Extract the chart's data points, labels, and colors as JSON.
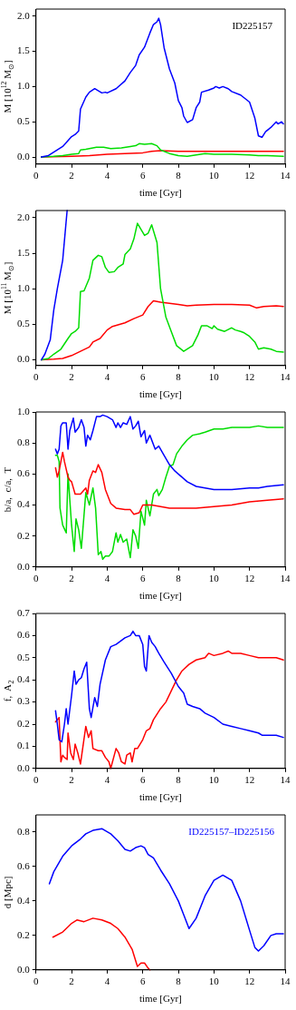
{
  "chart_data": [
    {
      "type": "line",
      "xlabel": "time [Gyr]",
      "ylabel": "M [10$^{12}$ M$_{⊙}$]",
      "xlim": [
        0,
        14
      ],
      "xticks": [
        0,
        2,
        4,
        6,
        8,
        10,
        12,
        14
      ],
      "ylim": [
        -0.1,
        2.1
      ],
      "yticks": [
        {
          "value": 0,
          "label": "0.0"
        },
        0.5,
        {
          "value": 1,
          "label": "1.0"
        },
        1.5,
        {
          "value": 2,
          "label": "2.0"
        }
      ],
      "grid": false,
      "marker": "none",
      "line_style": "solid",
      "annotations": [
        "ID225157"
      ],
      "series": [
        {
          "color": "#0000ff",
          "x": [
            0.3,
            0.7,
            1,
            1.5,
            2,
            2.2,
            2.4,
            2.5,
            2.8,
            3,
            3.3,
            3.7,
            3.9,
            4,
            4.5,
            5,
            5.3,
            5.6,
            5.8,
            6.1,
            6.4,
            6.6,
            6.8,
            6.9,
            7,
            7.2,
            7.5,
            7.8,
            8,
            8.2,
            8.3,
            8.5,
            8.8,
            9,
            9.2,
            9.3,
            9.7,
            10,
            10.1,
            10.3,
            10.5,
            10.8,
            11,
            11.5,
            12,
            12.3,
            12.5,
            12.7,
            12.9,
            13.2,
            13.5,
            13.6,
            13.8,
            13.9
          ],
          "values": [
            0,
            0.02,
            0.07,
            0.15,
            0.29,
            0.32,
            0.37,
            0.68,
            0.85,
            0.92,
            0.97,
            0.91,
            0.92,
            0.91,
            0.97,
            1.08,
            1.2,
            1.3,
            1.45,
            1.56,
            1.76,
            1.88,
            1.92,
            1.97,
            1.88,
            1.55,
            1.25,
            1.05,
            0.8,
            0.7,
            0.58,
            0.49,
            0.53,
            0.7,
            0.78,
            0.92,
            0.95,
            0.98,
            1,
            0.98,
            1,
            0.97,
            0.93,
            0.88,
            0.78,
            0.55,
            0.3,
            0.28,
            0.36,
            0.42,
            0.5,
            0.47,
            0.5,
            0.47
          ]
        },
        {
          "color": "#00dd00",
          "x": [
            0.3,
            1,
            1.5,
            2,
            2.4,
            2.5,
            2.8,
            3,
            3.4,
            3.8,
            4.2,
            4.8,
            5.3,
            5.6,
            5.8,
            6.1,
            6.5,
            6.8,
            7,
            7.5,
            8,
            8.5,
            9,
            9.5,
            10,
            11,
            12,
            12.5,
            13,
            13.9
          ],
          "values": [
            0,
            0.01,
            0.02,
            0.04,
            0.05,
            0.1,
            0.11,
            0.12,
            0.14,
            0.14,
            0.12,
            0.13,
            0.15,
            0.16,
            0.19,
            0.18,
            0.19,
            0.16,
            0.1,
            0.05,
            0.02,
            0.01,
            0.03,
            0.05,
            0.04,
            0.04,
            0.03,
            0.02,
            0.02,
            0.01
          ]
        },
        {
          "color": "#ff0000",
          "x": [
            0.3,
            2,
            3,
            4,
            5,
            6,
            6.5,
            7,
            8,
            10,
            12,
            13.9
          ],
          "values": [
            0,
            0.01,
            0.02,
            0.04,
            0.05,
            0.06,
            0.08,
            0.09,
            0.08,
            0.08,
            0.08,
            0.08
          ]
        }
      ]
    },
    {
      "type": "line",
      "xlabel": "time [Gyr]",
      "ylabel": "M [10$^{11}$ M$_{⊙}$]",
      "xlim": [
        0,
        14
      ],
      "xticks": [
        0,
        2,
        4,
        6,
        8,
        10,
        12,
        14
      ],
      "ylim": [
        -0.08,
        2.1
      ],
      "yticks": [
        {
          "value": 0,
          "label": "0.0"
        },
        0.5,
        {
          "value": 1,
          "label": "1.0"
        },
        1.5,
        {
          "value": 2,
          "label": "2.0"
        }
      ],
      "grid": false,
      "marker": "none",
      "line_style": "solid",
      "series": [
        {
          "color": "#0000ff",
          "x": [
            0.3,
            0.5,
            0.8,
            1,
            1.2,
            1.5,
            1.75
          ],
          "values": [
            0,
            0.08,
            0.28,
            0.7,
            1.0,
            1.4,
            2.1
          ]
        },
        {
          "color": "#00dd00",
          "x": [
            0.3,
            0.7,
            1,
            1.4,
            1.8,
            2,
            2.2,
            2.4,
            2.5,
            2.7,
            3,
            3.2,
            3.5,
            3.7,
            3.9,
            4.1,
            4.4,
            4.6,
            4.9,
            5,
            5.3,
            5.5,
            5.7,
            6.1,
            6.3,
            6.5,
            6.8,
            7,
            7.3,
            7.6,
            7.9,
            8.3,
            8.8,
            9.1,
            9.3,
            9.6,
            9.9,
            10,
            10.2,
            10.6,
            11,
            11.2,
            11.5,
            11.7,
            12,
            12.3,
            12.5,
            12.8,
            13.2,
            13.5,
            13.9
          ],
          "values": [
            0,
            0.02,
            0.08,
            0.15,
            0.3,
            0.37,
            0.4,
            0.45,
            0.96,
            0.97,
            1.15,
            1.4,
            1.47,
            1.45,
            1.3,
            1.23,
            1.24,
            1.3,
            1.35,
            1.48,
            1.56,
            1.7,
            1.92,
            1.75,
            1.78,
            1.9,
            1.65,
            1.0,
            0.6,
            0.4,
            0.2,
            0.12,
            0.2,
            0.35,
            0.48,
            0.48,
            0.44,
            0.48,
            0.43,
            0.4,
            0.45,
            0.42,
            0.4,
            0.38,
            0.33,
            0.25,
            0.15,
            0.17,
            0.15,
            0.12,
            0.11
          ]
        },
        {
          "color": "#ff0000",
          "x": [
            0.3,
            1,
            1.5,
            2,
            2.5,
            3,
            3.2,
            3.6,
            4,
            4.3,
            5,
            5.5,
            6,
            6.3,
            6.6,
            7,
            8,
            8.5,
            9,
            10,
            11,
            12,
            12.4,
            12.8,
            13.5,
            13.9
          ],
          "values": [
            0,
            0.01,
            0.02,
            0.06,
            0.12,
            0.18,
            0.25,
            0.3,
            0.42,
            0.47,
            0.52,
            0.58,
            0.63,
            0.75,
            0.83,
            0.81,
            0.78,
            0.76,
            0.77,
            0.78,
            0.78,
            0.77,
            0.73,
            0.75,
            0.76,
            0.75
          ]
        }
      ]
    },
    {
      "type": "line",
      "xlabel": "time [Gyr]",
      "ylabel": "b/a,  c/a,  T",
      "xlim": [
        0,
        14
      ],
      "xticks": [
        0,
        2,
        4,
        6,
        8,
        10,
        12,
        14
      ],
      "ylim": [
        0,
        1
      ],
      "yticks": [
        {
          "value": 0,
          "label": "0.0"
        },
        0.2,
        0.4,
        0.6,
        0.8,
        {
          "value": 1,
          "label": "1.0"
        }
      ],
      "grid": false,
      "marker": "none",
      "line_style": "solid",
      "series": [
        {
          "color": "#0000ff",
          "x": [
            1.1,
            1.2,
            1.3,
            1.4,
            1.5,
            1.7,
            1.8,
            1.9,
            2,
            2.1,
            2.2,
            2.4,
            2.55,
            2.7,
            2.8,
            2.9,
            3.05,
            3.2,
            3.4,
            3.6,
            3.75,
            4,
            4.3,
            4.5,
            4.6,
            4.75,
            4.9,
            5.1,
            5.3,
            5.45,
            5.6,
            5.75,
            5.9,
            6.1,
            6.2,
            6.4,
            6.7,
            6.9,
            7.2,
            7.5,
            7.8,
            8,
            8.5,
            9,
            9.5,
            10,
            10.5,
            11,
            12,
            12.5,
            13,
            13.9
          ],
          "values": [
            0.76,
            0.73,
            0.76,
            0.91,
            0.93,
            0.93,
            0.76,
            0.88,
            0.92,
            0.96,
            0.87,
            0.9,
            0.95,
            0.9,
            0.78,
            0.85,
            0.82,
            0.88,
            0.97,
            0.97,
            0.98,
            0.97,
            0.95,
            0.9,
            0.93,
            0.9,
            0.93,
            0.92,
            0.97,
            0.89,
            0.91,
            0.94,
            0.84,
            0.88,
            0.8,
            0.85,
            0.76,
            0.78,
            0.72,
            0.66,
            0.62,
            0.6,
            0.55,
            0.52,
            0.51,
            0.5,
            0.5,
            0.5,
            0.51,
            0.51,
            0.52,
            0.53
          ]
        },
        {
          "color": "#ff0000",
          "x": [
            1.1,
            1.2,
            1.3,
            1.5,
            1.6,
            1.8,
            1.9,
            2,
            2.2,
            2.5,
            2.8,
            2.9,
            3,
            3.2,
            3.35,
            3.5,
            3.7,
            3.9,
            4.2,
            4.5,
            5,
            5.3,
            5.5,
            5.8,
            6,
            6.5,
            7,
            7.5,
            8,
            9,
            10,
            11,
            12,
            13,
            13.9
          ],
          "values": [
            0.64,
            0.58,
            0.62,
            0.74,
            0.68,
            0.58,
            0.56,
            0.55,
            0.47,
            0.47,
            0.51,
            0.47,
            0.56,
            0.62,
            0.61,
            0.66,
            0.61,
            0.5,
            0.41,
            0.38,
            0.37,
            0.37,
            0.34,
            0.35,
            0.4,
            0.4,
            0.39,
            0.38,
            0.38,
            0.38,
            0.39,
            0.4,
            0.42,
            0.43,
            0.44
          ]
        },
        {
          "color": "#00dd00",
          "x": [
            1.1,
            1.2,
            1.3,
            1.35,
            1.5,
            1.7,
            1.8,
            2,
            2.15,
            2.25,
            2.4,
            2.55,
            2.8,
            3,
            3.2,
            3.35,
            3.5,
            3.65,
            3.75,
            3.9,
            4.1,
            4.3,
            4.5,
            4.6,
            4.75,
            4.9,
            5.1,
            5.3,
            5.45,
            5.6,
            5.75,
            5.9,
            6.1,
            6.2,
            6.4,
            6.6,
            6.8,
            6.9,
            7.1,
            7.3,
            7.5,
            7.7,
            7.9,
            8.2,
            8.5,
            8.8,
            9.2,
            9.5,
            10,
            10.5,
            11,
            12,
            12.5,
            13,
            13.9
          ],
          "values": [
            0.72,
            0.72,
            0.68,
            0.38,
            0.27,
            0.22,
            0.6,
            0.27,
            0.1,
            0.31,
            0.24,
            0.12,
            0.48,
            0.4,
            0.51,
            0.38,
            0.08,
            0.1,
            0.05,
            0.07,
            0.07,
            0.1,
            0.22,
            0.16,
            0.21,
            0.16,
            0.18,
            0.06,
            0.24,
            0.2,
            0.12,
            0.36,
            0.27,
            0.43,
            0.33,
            0.47,
            0.5,
            0.46,
            0.5,
            0.58,
            0.65,
            0.66,
            0.73,
            0.78,
            0.82,
            0.85,
            0.86,
            0.87,
            0.89,
            0.89,
            0.9,
            0.9,
            0.91,
            0.9,
            0.9
          ]
        }
      ]
    },
    {
      "type": "line",
      "xlabel": "time [Gyr]",
      "ylabel": "f,  A$_{2}$",
      "xlim": [
        0,
        14
      ],
      "xticks": [
        0,
        2,
        4,
        6,
        8,
        10,
        12,
        14
      ],
      "ylim": [
        0,
        0.7
      ],
      "yticks": [
        {
          "value": 0,
          "label": "0.0"
        },
        0.1,
        0.2,
        0.3,
        0.4,
        0.5,
        0.6,
        0.7
      ],
      "grid": false,
      "marker": "none",
      "line_style": "solid",
      "series": [
        {
          "color": "#0000ff",
          "x": [
            1.1,
            1.2,
            1.3,
            1.45,
            1.6,
            1.7,
            1.8,
            2,
            2.15,
            2.25,
            2.4,
            2.55,
            2.7,
            2.85,
            3,
            3.1,
            3.3,
            3.45,
            3.6,
            3.9,
            4.2,
            4.5,
            5,
            5.3,
            5.45,
            5.6,
            5.8,
            6,
            6.1,
            6.2,
            6.35,
            6.5,
            6.7,
            6.9,
            7.2,
            7.6,
            8,
            8.3,
            8.5,
            8.8,
            9.2,
            9.5,
            10,
            10.5,
            11,
            11.5,
            12,
            12.5,
            12.7,
            13,
            13.5,
            13.9
          ],
          "values": [
            0.26,
            0.2,
            0.13,
            0.12,
            0.2,
            0.27,
            0.2,
            0.33,
            0.44,
            0.38,
            0.4,
            0.41,
            0.45,
            0.48,
            0.27,
            0.23,
            0.32,
            0.28,
            0.38,
            0.49,
            0.55,
            0.56,
            0.59,
            0.6,
            0.62,
            0.6,
            0.6,
            0.56,
            0.46,
            0.44,
            0.6,
            0.57,
            0.55,
            0.52,
            0.48,
            0.43,
            0.37,
            0.34,
            0.29,
            0.28,
            0.27,
            0.25,
            0.23,
            0.2,
            0.19,
            0.18,
            0.17,
            0.16,
            0.15,
            0.15,
            0.15,
            0.14
          ]
        },
        {
          "color": "#ff0000",
          "x": [
            1.1,
            1.3,
            1.4,
            1.5,
            1.6,
            1.75,
            1.8,
            1.95,
            2.1,
            2.2,
            2.35,
            2.5,
            2.8,
            2.95,
            3.1,
            3.2,
            3.5,
            3.7,
            3.9,
            4.1,
            4.2,
            4.5,
            4.65,
            4.8,
            5,
            5.1,
            5.3,
            5.4,
            5.55,
            5.7,
            6,
            6.2,
            6.4,
            6.6,
            7,
            7.3,
            7.6,
            7.9,
            8.2,
            8.6,
            9,
            9.5,
            9.7,
            10,
            10.5,
            10.8,
            11,
            11.5,
            12,
            12.5,
            13,
            13.5,
            13.9
          ],
          "values": [
            0.21,
            0.23,
            0.03,
            0.06,
            0.05,
            0.04,
            0.16,
            0.07,
            0.04,
            0.11,
            0.07,
            0.02,
            0.19,
            0.14,
            0.17,
            0.09,
            0.08,
            0.08,
            0.05,
            0.03,
            0,
            0.09,
            0.07,
            0.03,
            0.02,
            0.06,
            0.07,
            0.03,
            0.09,
            0.09,
            0.13,
            0.17,
            0.18,
            0.22,
            0.27,
            0.3,
            0.35,
            0.4,
            0.44,
            0.47,
            0.49,
            0.5,
            0.52,
            0.51,
            0.52,
            0.53,
            0.52,
            0.52,
            0.51,
            0.5,
            0.5,
            0.5,
            0.49
          ]
        }
      ]
    },
    {
      "type": "line",
      "xlabel": "time [Gyr]",
      "ylabel": "d [Mpc]",
      "xlim": [
        0,
        14
      ],
      "xticks": [
        0,
        2,
        4,
        6,
        8,
        10,
        12,
        14
      ],
      "ylim": [
        0,
        0.9
      ],
      "yticks": [
        {
          "value": 0,
          "label": "0.0"
        },
        0.2,
        0.4,
        0.6,
        0.8
      ],
      "grid": false,
      "marker": "none",
      "line_style": "solid",
      "legend": "top right",
      "series": [
        {
          "name": "ID225157–ID225156",
          "color": "#0000ff",
          "x": [
            0.75,
            1,
            1.5,
            2,
            2.5,
            2.8,
            3.2,
            3.7,
            4.2,
            4.6,
            5,
            5.3,
            5.6,
            5.9,
            6.1,
            6.3,
            6.6,
            7,
            7.5,
            8,
            8.3,
            8.6,
            9,
            9.5,
            10,
            10.5,
            11,
            11.5,
            12,
            12.3,
            12.5,
            12.8,
            13.2,
            13.5,
            13.9
          ],
          "values": [
            0.5,
            0.57,
            0.66,
            0.72,
            0.76,
            0.79,
            0.81,
            0.82,
            0.79,
            0.75,
            0.7,
            0.69,
            0.71,
            0.72,
            0.71,
            0.67,
            0.65,
            0.58,
            0.5,
            0.4,
            0.32,
            0.24,
            0.3,
            0.43,
            0.52,
            0.55,
            0.52,
            0.4,
            0.23,
            0.13,
            0.11,
            0.14,
            0.2,
            0.21,
            0.21
          ]
        },
        {
          "color": "#ff0000",
          "x": [
            0.95,
            1.5,
            2,
            2.3,
            2.7,
            3.2,
            3.7,
            4.2,
            4.6,
            5,
            5.4,
            5.7,
            5.9,
            6.1,
            6.3,
            6.4
          ],
          "values": [
            0.19,
            0.22,
            0.27,
            0.29,
            0.28,
            0.3,
            0.29,
            0.27,
            0.24,
            0.19,
            0.12,
            0.02,
            0.04,
            0.04,
            0.01,
            0
          ]
        }
      ]
    }
  ]
}
